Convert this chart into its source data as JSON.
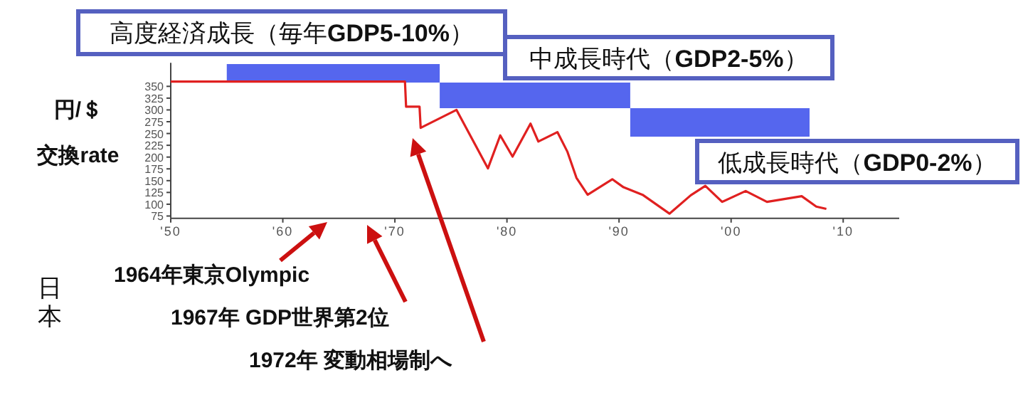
{
  "chart_data": {
    "type": "line",
    "ylabel": "円/＄交換rate",
    "x": [
      1950,
      1970.9,
      1971,
      1972.2,
      1972.3,
      1975.5,
      1978.3,
      1979.4,
      1980.5,
      1982.1,
      1982.8,
      1984.5,
      1985.4,
      1986.2,
      1987.2,
      1989.4,
      1990.4,
      1992.1,
      1994.5,
      1996.4,
      1997.7,
      1999.2,
      2001.3,
      2003.2,
      2006.3,
      2007.6,
      2008.5
    ],
    "series": [
      {
        "color": "#e02020",
        "values": [
          360,
          360,
          307,
          307,
          262,
          300,
          176,
          246,
          201,
          271,
          233,
          253,
          211,
          156,
          120,
          153,
          136,
          120,
          80,
          119,
          139,
          105,
          128,
          105,
          117,
          95,
          90
        ]
      }
    ],
    "xlim": [
      1950,
      2015
    ],
    "ylim": [
      70,
      400
    ],
    "xticks": [
      {
        "value": 1950,
        "label": "'50"
      },
      {
        "value": 1960,
        "label": "'60"
      },
      {
        "value": 1970,
        "label": "'70"
      },
      {
        "value": 1980,
        "label": "'80"
      },
      {
        "value": 1990,
        "label": "'90"
      },
      {
        "value": 2000,
        "label": "'00"
      },
      {
        "value": 2010,
        "label": "'10"
      }
    ],
    "yticks": [
      350,
      325,
      300,
      275,
      250,
      225,
      200,
      175,
      150,
      125,
      100,
      75
    ],
    "bands": [
      {
        "axis": "x",
        "from": 1955,
        "to": 1974,
        "label": "高度経済成長（毎年**GDP5-10%**）",
        "color": "#5566ee"
      },
      {
        "axis": "x",
        "from": 1974,
        "to": 1991,
        "label": "中成長時代（**GDP2-5%**）",
        "color": "#5566ee"
      },
      {
        "axis": "x",
        "from": 1991,
        "to": 2007,
        "label": "低成長時代（**GDP0-2%**）",
        "color": "#5566ee"
      }
    ],
    "annotations": [
      "1964年東京Olympic",
      "1967年 GDP世界第2位",
      "1972年 変動相場制へ",
      "日本"
    ],
    "grid": false,
    "marker": "none",
    "line_style": "solid"
  }
}
